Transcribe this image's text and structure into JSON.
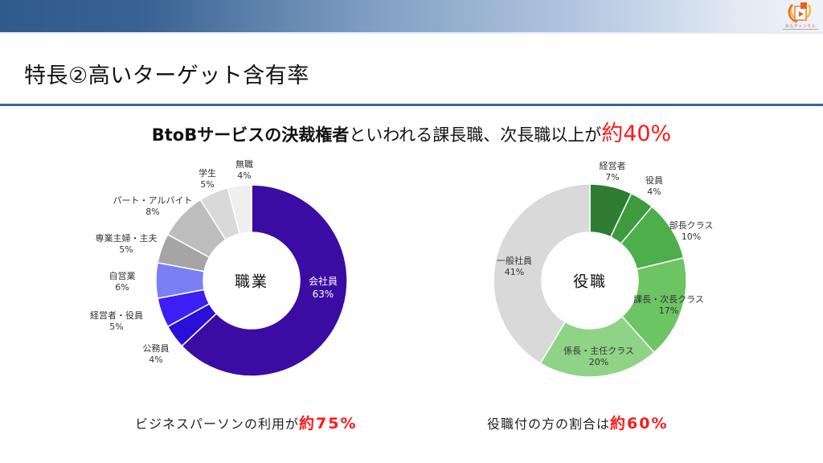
{
  "header": {
    "logo_text": "あもチャンネル",
    "logo_icon": "play-video-icon"
  },
  "page": {
    "title": "特長②高いターゲット含有率"
  },
  "headline": {
    "bold": "BtoBサービスの決裁権者",
    "normal": "といわれる課長職、次長職以上が",
    "highlight": "約40%"
  },
  "colors": {
    "header_dark": "#2f5a8c",
    "divider": "#3d6699",
    "highlight_red": "#ff1a1a"
  },
  "captions": {
    "left_text": "ビジネスパーソンの利用が",
    "left_highlight": "約75%",
    "right_text": "役職付の方の割合は",
    "right_highlight": "約60%"
  },
  "chart_data": [
    {
      "type": "pie",
      "variant": "donut",
      "title": "職業",
      "categories": [
        "会社員",
        "公務員",
        "経営者・役員",
        "自営業",
        "専業主婦・主夫",
        "パート・アルバイト",
        "学生",
        "無職"
      ],
      "values": [
        63,
        4,
        5,
        6,
        5,
        8,
        5,
        4
      ],
      "labels": [
        "63%",
        "4%",
        "5%",
        "6%",
        "5%",
        "8%",
        "5%",
        "4%"
      ],
      "colors": [
        "#3a0ca3",
        "#2a0fd6",
        "#3b1ff5",
        "#7a7ff5",
        "#a5a5a5",
        "#bdbdbd",
        "#d9d9d9",
        "#efefef"
      ],
      "start_angle": "12 o'clock, clockwise"
    },
    {
      "type": "pie",
      "variant": "donut",
      "title": "役職",
      "categories": [
        "経営者",
        "役員",
        "部長クラス",
        "課長・次長クラス",
        "係長・主任クラス",
        "一般社員"
      ],
      "values": [
        7,
        4,
        10,
        17,
        20,
        41
      ],
      "labels": [
        "7%",
        "4%",
        "10%",
        "17%",
        "20%",
        "41%"
      ],
      "colors": [
        "#2e7d32",
        "#3d9a3d",
        "#4caf4a",
        "#6cc463",
        "#8fd486",
        "#d9d9d9"
      ],
      "start_angle": "12 o'clock, clockwise"
    }
  ]
}
